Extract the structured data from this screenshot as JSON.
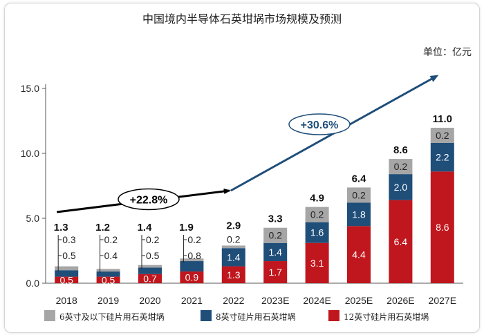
{
  "chart_data": {
    "type": "bar",
    "stacked": true,
    "title": "中国境内半导体石英坩埚市场规模及预测",
    "unit_label": "单位：亿元",
    "categories": [
      "2018",
      "2019",
      "2020",
      "2021",
      "2022",
      "2023E",
      "2024E",
      "2025E",
      "2026E",
      "2027E"
    ],
    "series": [
      {
        "name": "12英寸硅片用石英坩埚",
        "color": "#c0161d",
        "values": [
          0.5,
          0.5,
          0.7,
          0.9,
          1.3,
          1.7,
          3.1,
          4.4,
          6.4,
          8.6
        ]
      },
      {
        "name": "8英寸硅片用石英坩埚",
        "color": "#1f4e79",
        "values": [
          0.5,
          0.4,
          0.5,
          0.8,
          1.4,
          1.4,
          1.6,
          1.8,
          2.0,
          2.2
        ]
      },
      {
        "name": "6英寸及以下硅片用石英坩埚",
        "color": "#a6a6a6",
        "values": [
          0.3,
          0.2,
          0.2,
          0.2,
          0.2,
          0.2,
          0.2,
          0.2,
          0.2,
          0.2
        ]
      }
    ],
    "totals": [
      1.3,
      1.2,
      1.4,
      1.9,
      2.9,
      3.3,
      4.9,
      6.4,
      8.6,
      11.0
    ],
    "value_labels": {
      "12英寸硅片用石英坩埚": [
        "0.5",
        "0.5",
        "0.7",
        "0.9",
        "1.3",
        "1.7",
        "3.1",
        "4.4",
        "6.4",
        "8.6"
      ],
      "8英寸硅片用石英坩埚": [
        "0.5",
        "0.4",
        "0.5",
        "0.8",
        "1.4",
        "1.4",
        "1.6",
        "1.8",
        "2.0",
        "2.2"
      ],
      "6英寸及以下硅片用石英坩埚": [
        "0.3",
        "0.2",
        "0.2",
        "0.2",
        "0.2",
        "0.2",
        "0.2",
        "0.2",
        "0.2",
        "0.2"
      ]
    },
    "total_labels": [
      "1.3",
      "1.2",
      "1.4",
      "1.9",
      "2.9",
      "3.3",
      "4.9",
      "6.4",
      "8.6",
      "11.0"
    ],
    "y_ticks": [
      "0.0",
      "5.0",
      "10.0",
      "15.0"
    ],
    "ylim": [
      0,
      15
    ],
    "legend": [
      "6英寸及以下硅片用石英坩埚",
      "8英寸硅片用石英坩埚",
      "12英寸硅片用石英坩埚"
    ],
    "legend_position": "bottom",
    "annotations": [
      {
        "label": "+22.8%",
        "from": "2018",
        "to": "2022",
        "color": "#000000"
      },
      {
        "label": "+30.6%",
        "from": "2022",
        "to": "2027E",
        "color": "#1f4e79"
      }
    ]
  }
}
